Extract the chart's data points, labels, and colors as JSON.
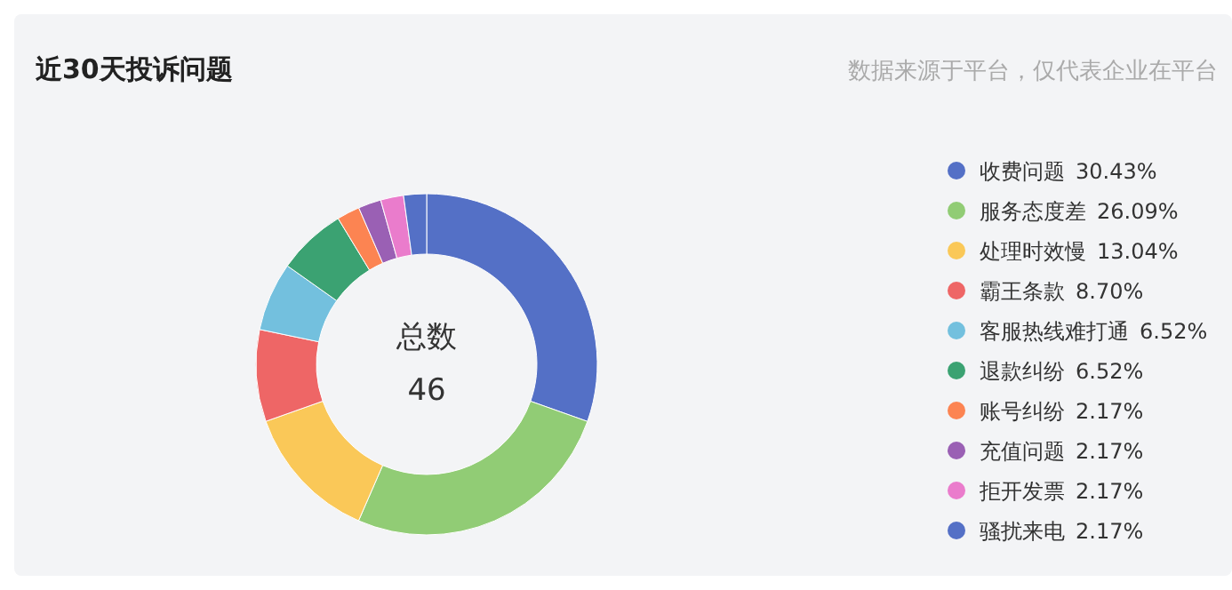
{
  "chart_data": {
    "type": "donut",
    "title": "近30天投诉问题",
    "subtitle": "数据来源于平台，仅代表企业在平台",
    "categories": [
      "收费问题",
      "服务态度差",
      "处理时效慢",
      "霸王条款",
      "客服热线难打通",
      "退款纠纷",
      "账号纠纷",
      "充值问题",
      "拒开发票",
      "骚扰来电"
    ],
    "values": [
      30.43,
      26.09,
      13.04,
      8.7,
      6.52,
      6.52,
      2.17,
      2.17,
      2.17,
      2.17
    ],
    "colors": [
      "#5470c6",
      "#91cc75",
      "#fac858",
      "#ee6666",
      "#73c0de",
      "#3ba272",
      "#fc8452",
      "#9a60b4",
      "#ea7ccc",
      "#5470c6"
    ],
    "value_labels": [
      "30.43%",
      "26.09%",
      "13.04%",
      "8.70%",
      "6.52%",
      "6.52%",
      "2.17%",
      "2.17%",
      "2.17%",
      "2.17%"
    ],
    "annotations": [
      "总数",
      "46"
    ],
    "legend": "right"
  }
}
